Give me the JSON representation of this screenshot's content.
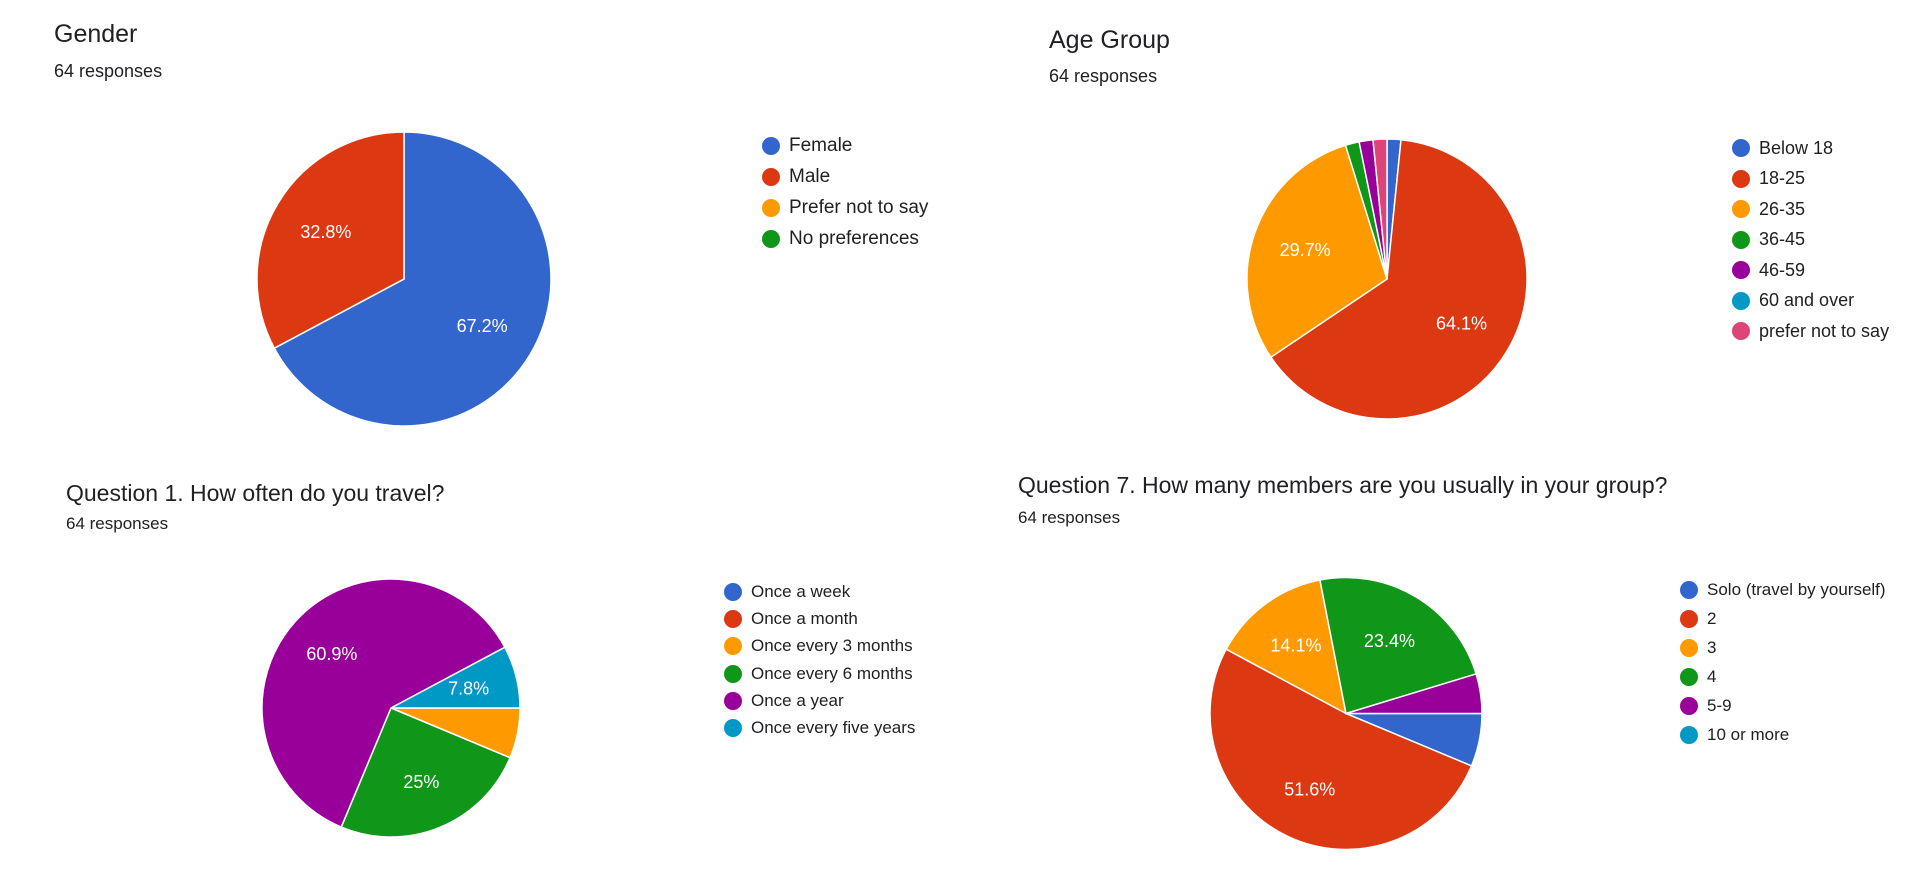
{
  "chart_data": [
    {
      "type": "pie",
      "title": "Gender",
      "subtitle": "64 responses",
      "start_angle": 90,
      "slices": [
        {
          "label": "Female",
          "value": 67.2,
          "color": "#3366cc",
          "display": "67.2%"
        },
        {
          "label": "Male",
          "value": 32.8,
          "color": "#dc3912",
          "display": "32.8%"
        },
        {
          "label": "Prefer not to say",
          "value": 0,
          "color": "#ff9900",
          "display": ""
        },
        {
          "label": "No preferences",
          "value": 0,
          "color": "#109618",
          "display": ""
        }
      ]
    },
    {
      "type": "pie",
      "title": "Age Group",
      "subtitle": "64 responses",
      "start_angle": 90,
      "slices": [
        {
          "label": "Below 18",
          "value": 1.6,
          "color": "#3366cc",
          "display": ""
        },
        {
          "label": "18-25",
          "value": 64.1,
          "color": "#dc3912",
          "display": "64.1%"
        },
        {
          "label": "26-35",
          "value": 29.7,
          "color": "#ff9900",
          "display": "29.7%"
        },
        {
          "label": "36-45",
          "value": 1.6,
          "color": "#109618",
          "display": ""
        },
        {
          "label": "46-59",
          "value": 1.6,
          "color": "#990099",
          "display": ""
        },
        {
          "label": "60 and over",
          "value": 0,
          "color": "#0099c6",
          "display": ""
        },
        {
          "label": "prefer not to say",
          "value": 1.6,
          "color": "#dd4477",
          "display": ""
        }
      ]
    },
    {
      "type": "pie",
      "title": "Question 1. How often do you travel?",
      "subtitle": "64 responses",
      "start_angle": 0,
      "slices": [
        {
          "label": "Once a week",
          "value": 0,
          "color": "#3366cc",
          "display": ""
        },
        {
          "label": "Once a month",
          "value": 0,
          "color": "#dc3912",
          "display": ""
        },
        {
          "label": "Once every 3 months",
          "value": 6.3,
          "color": "#ff9900",
          "display": ""
        },
        {
          "label": "Once every 6 months",
          "value": 25,
          "color": "#109618",
          "display": "25%"
        },
        {
          "label": "Once a year",
          "value": 60.9,
          "color": "#990099",
          "display": "60.9%"
        },
        {
          "label": "Once every five years",
          "value": 7.8,
          "color": "#0099c6",
          "display": "7.8%"
        }
      ]
    },
    {
      "type": "pie",
      "title": "Question 7. How many members are you usually in your group?",
      "subtitle": "64 responses",
      "start_angle": 0,
      "slices": [
        {
          "label": "Solo (travel by yourself)",
          "value": 6.3,
          "color": "#3366cc",
          "display": ""
        },
        {
          "label": "2",
          "value": 51.6,
          "color": "#dc3912",
          "display": "51.6%"
        },
        {
          "label": "3",
          "value": 14.1,
          "color": "#ff9900",
          "display": "14.1%"
        },
        {
          "label": "4",
          "value": 23.4,
          "color": "#109618",
          "display": "23.4%"
        },
        {
          "label": "5-9",
          "value": 4.7,
          "color": "#990099",
          "display": ""
        },
        {
          "label": "10 or more",
          "value": 0,
          "color": "#0099c6",
          "display": ""
        }
      ]
    }
  ]
}
